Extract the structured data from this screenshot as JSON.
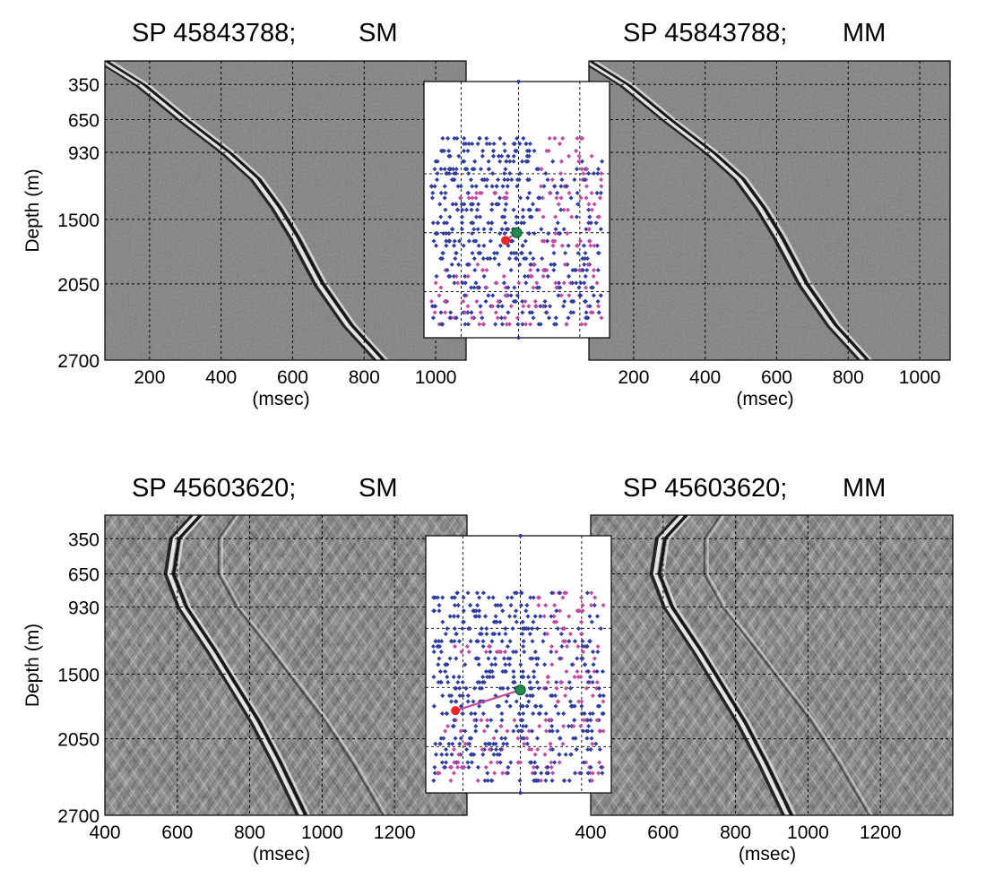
{
  "chart_data": [
    {
      "type": "heatmap",
      "title": "SP 45843788;",
      "subtitle": "SM",
      "xlabel": "(msec)",
      "ylabel": "Depth (m)",
      "xlim": [
        75,
        1085
      ],
      "ylim": [
        2700,
        150
      ],
      "xticks": [
        200,
        400,
        600,
        800,
        1000
      ],
      "yticks": [
        350,
        650,
        930,
        1500,
        2050,
        2700
      ],
      "grid": true,
      "first_arrival": {
        "x": [
          75,
          180,
          300,
          420,
          500,
          560,
          610,
          680,
          760,
          850
        ],
        "y": [
          150,
          350,
          650,
          930,
          1150,
          1400,
          1650,
          2050,
          2400,
          2700
        ]
      }
    },
    {
      "type": "heatmap",
      "title": "SP 45843788;",
      "subtitle": "MM",
      "xlabel": "(msec)",
      "ylabel": "",
      "xlim": [
        75,
        1085
      ],
      "ylim": [
        2700,
        150
      ],
      "xticks": [
        200,
        400,
        600,
        800,
        1000
      ],
      "yticks": [
        350,
        650,
        930,
        1500,
        2050,
        2700
      ],
      "grid": true,
      "first_arrival": {
        "x": [
          75,
          180,
          300,
          420,
          500,
          560,
          610,
          680,
          760,
          850
        ],
        "y": [
          150,
          350,
          650,
          930,
          1150,
          1400,
          1650,
          2050,
          2400,
          2700
        ]
      }
    },
    {
      "type": "heatmap",
      "title": "SP 45603620;",
      "subtitle": "SM",
      "xlabel": "(msec)",
      "ylabel": "Depth (m)",
      "xlim": [
        400,
        1400
      ],
      "ylim": [
        2700,
        150
      ],
      "xticks": [
        400,
        600,
        800,
        1000,
        1200
      ],
      "yticks": [
        350,
        650,
        930,
        1500,
        2050,
        2700
      ],
      "grid": true,
      "first_arrival": {
        "x": [
          660,
          600,
          585,
          620,
          700,
          760,
          820,
          880,
          950
        ],
        "y": [
          150,
          350,
          650,
          930,
          1300,
          1600,
          1900,
          2250,
          2700
        ]
      }
    },
    {
      "type": "heatmap",
      "title": "SP 45603620;",
      "subtitle": "MM",
      "xlabel": "(msec)",
      "ylabel": "",
      "xlim": [
        400,
        1400
      ],
      "ylim": [
        2700,
        150
      ],
      "xticks": [
        400,
        600,
        800,
        1000,
        1200
      ],
      "yticks": [
        350,
        650,
        930,
        1500,
        2050,
        2700
      ],
      "grid": true,
      "first_arrival": {
        "x": [
          660,
          600,
          585,
          620,
          700,
          760,
          820,
          880,
          950
        ],
        "y": [
          150,
          350,
          650,
          930,
          1300,
          1600,
          1900,
          2250,
          2700
        ]
      }
    },
    {
      "type": "scatter",
      "title": "",
      "series_colors": {
        "receivers": "#2f3e9e",
        "selected": "#c24aa0",
        "source": "#e8262a",
        "well": "#1f8a4c"
      },
      "xlim": [
        0,
        100
      ],
      "ylim": [
        0,
        100
      ],
      "source": [
        44,
        38
      ],
      "well": [
        50,
        41
      ]
    },
    {
      "type": "scatter",
      "title": "",
      "series_colors": {
        "receivers": "#2f3e9e",
        "selected": "#c24aa0",
        "source": "#e8262a",
        "well": "#1f8a4c"
      },
      "xlim": [
        0,
        100
      ],
      "ylim": [
        0,
        100
      ],
      "source": [
        16,
        32
      ],
      "well": [
        51,
        40
      ]
    }
  ],
  "colors": {
    "seismic_bg": "#7d7d7d",
    "seismic_light": "#efefef",
    "seismic_dark": "#111111",
    "grid": "#000000"
  }
}
